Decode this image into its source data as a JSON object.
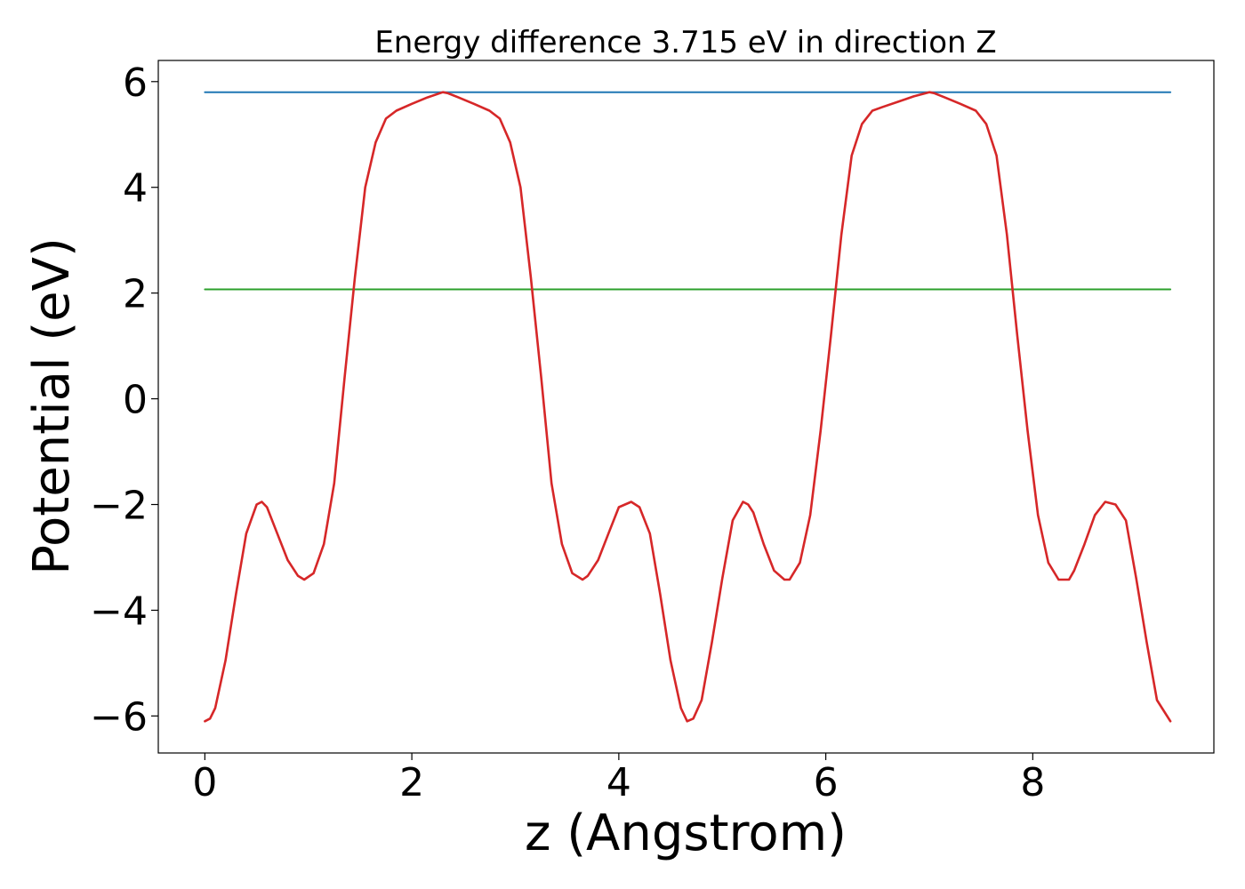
{
  "chart_data": {
    "type": "line",
    "title": "Energy difference 3.715 eV in direction Z",
    "xlabel": "z (Angstrom)",
    "ylabel": "Potential (eV)",
    "xlim": [
      -0.45,
      9.75
    ],
    "ylim": [
      -6.7,
      6.4
    ],
    "xticks": [
      0,
      2,
      4,
      6,
      8
    ],
    "xtick_labels": [
      "0",
      "2",
      "4",
      "6",
      "8"
    ],
    "yticks": [
      -6,
      -4,
      -2,
      0,
      2,
      4,
      6
    ],
    "ytick_labels": [
      "−6",
      "−4",
      "−2",
      "0",
      "2",
      "4",
      "6"
    ],
    "grid": false,
    "series": [
      {
        "color": "#1f77b4",
        "x": [
          0,
          9.33
        ],
        "y": [
          5.8,
          5.8
        ]
      },
      {
        "color": "#2ca02c",
        "x": [
          0,
          9.33
        ],
        "y": [
          2.07,
          2.07
        ]
      },
      {
        "color": "#d62728",
        "x": [
          0,
          0.05,
          0.1,
          0.2,
          0.3,
          0.4,
          0.5,
          0.55,
          0.6,
          0.7,
          0.8,
          0.9,
          0.96,
          1.05,
          1.15,
          1.25,
          1.35,
          1.45,
          1.55,
          1.65,
          1.75,
          1.85,
          2.0,
          2.15,
          2.3,
          2.35,
          2.45,
          2.6,
          2.75,
          2.85,
          2.95,
          3.05,
          3.15,
          3.25,
          3.35,
          3.45,
          3.55,
          3.65,
          3.7,
          3.8,
          3.9,
          4.0,
          4.12,
          4.2,
          4.3,
          4.4,
          4.5,
          4.6,
          4.66,
          4.72,
          4.8,
          4.9,
          5.0,
          5.1,
          5.2,
          5.25,
          5.3,
          5.4,
          5.5,
          5.6,
          5.65,
          5.75,
          5.85,
          5.95,
          6.05,
          6.15,
          6.25,
          6.35,
          6.45,
          6.55,
          6.7,
          6.85,
          7.0,
          7.05,
          7.15,
          7.3,
          7.45,
          7.55,
          7.65,
          7.75,
          7.85,
          7.95,
          8.05,
          8.15,
          8.25,
          8.35,
          8.4,
          8.5,
          8.6,
          8.7,
          8.8,
          8.9,
          9.0,
          9.1,
          9.2,
          9.33
        ],
        "y": [
          -6.1,
          -6.05,
          -5.85,
          -4.95,
          -3.7,
          -2.55,
          -2.0,
          -1.95,
          -2.05,
          -2.55,
          -3.05,
          -3.35,
          -3.42,
          -3.3,
          -2.75,
          -1.6,
          0.4,
          2.3,
          4.0,
          4.85,
          5.3,
          5.45,
          5.58,
          5.7,
          5.8,
          5.78,
          5.7,
          5.58,
          5.45,
          5.3,
          4.85,
          4.0,
          2.3,
          0.4,
          -1.6,
          -2.75,
          -3.3,
          -3.42,
          -3.35,
          -3.05,
          -2.55,
          -2.05,
          -1.95,
          -2.05,
          -2.55,
          -3.7,
          -4.95,
          -5.85,
          -6.1,
          -6.05,
          -5.7,
          -4.6,
          -3.4,
          -2.3,
          -1.95,
          -2.0,
          -2.15,
          -2.75,
          -3.25,
          -3.42,
          -3.42,
          -3.1,
          -2.2,
          -0.6,
          1.2,
          3.1,
          4.6,
          5.2,
          5.45,
          5.52,
          5.62,
          5.72,
          5.8,
          5.78,
          5.7,
          5.58,
          5.45,
          5.2,
          4.6,
          3.1,
          1.2,
          -0.6,
          -2.2,
          -3.1,
          -3.42,
          -3.42,
          -3.25,
          -2.75,
          -2.2,
          -1.95,
          -2.0,
          -2.3,
          -3.4,
          -4.6,
          -5.7,
          -6.1
        ]
      }
    ]
  }
}
